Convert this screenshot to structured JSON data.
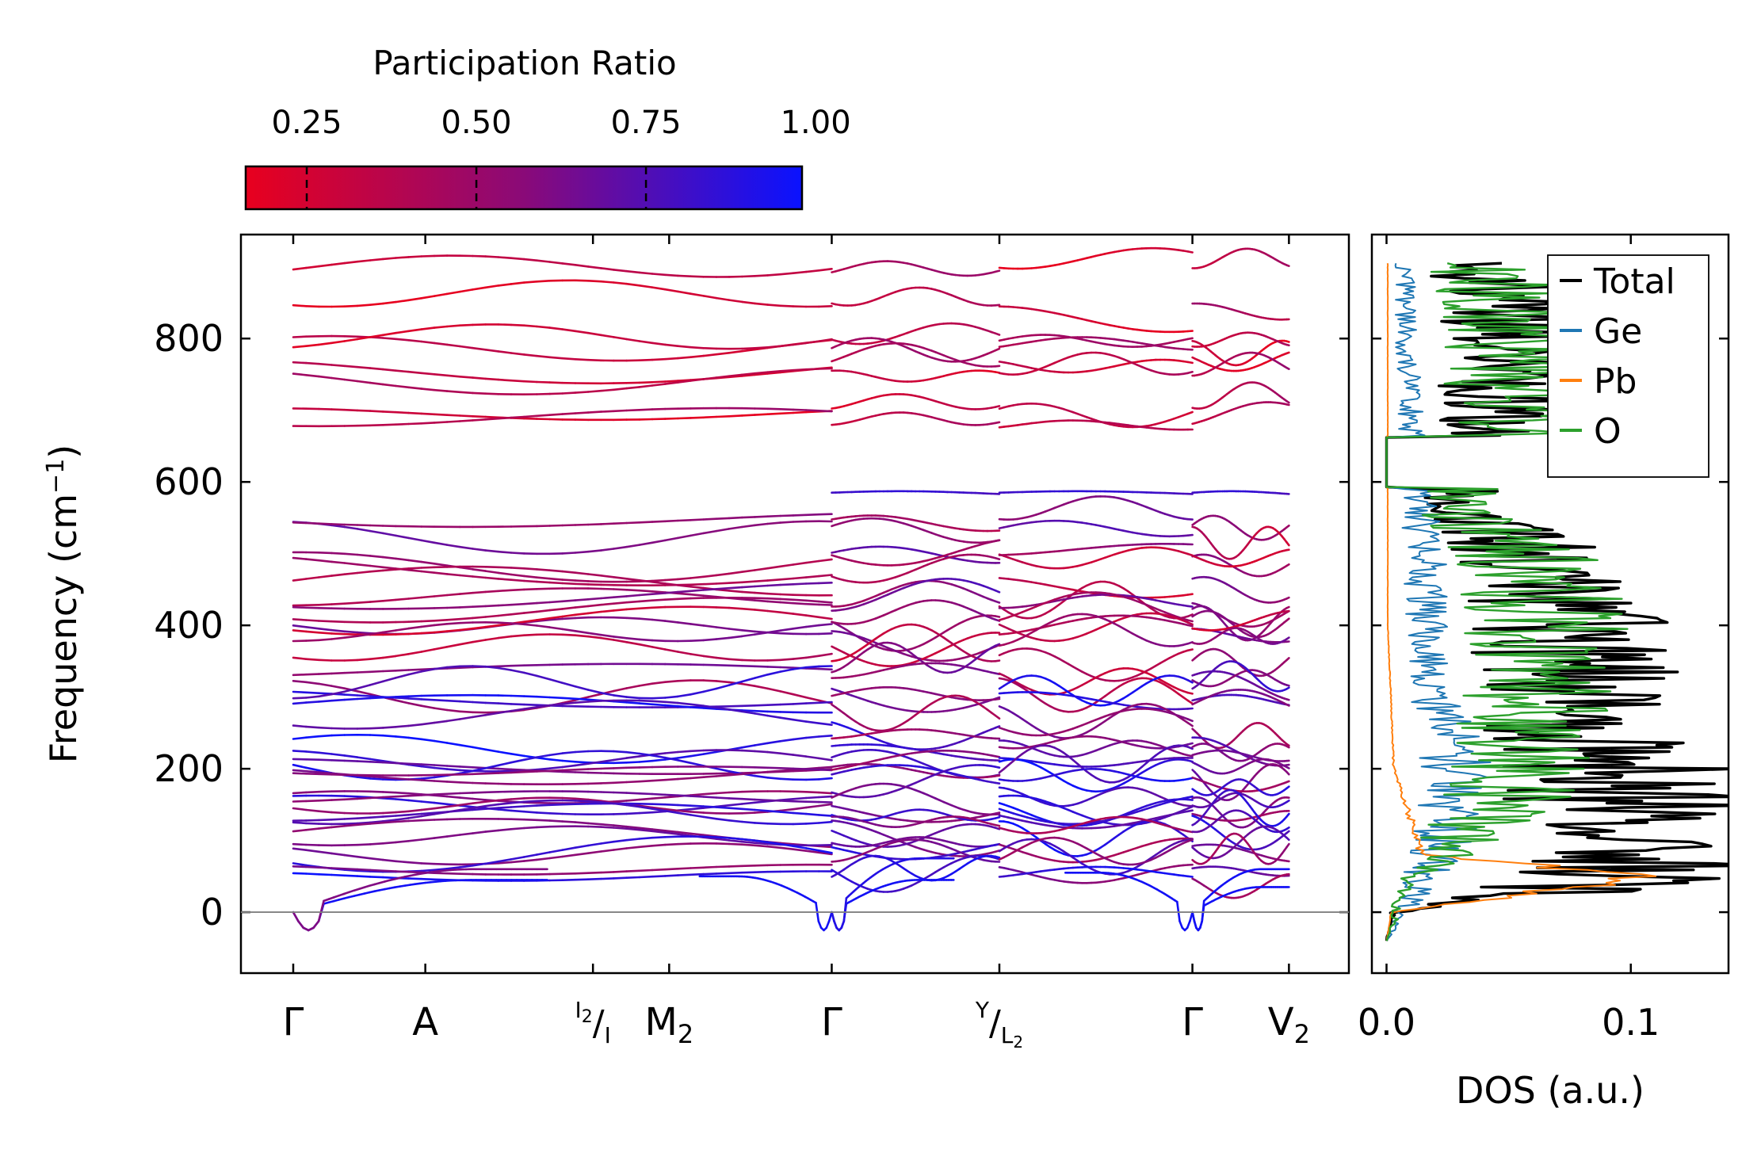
{
  "colors": {
    "low": "#e8001e",
    "mid": "#8a0a78",
    "high": "#0a12ff",
    "axis": "#000000",
    "zero_line": "#808080",
    "dos_total": "#000000",
    "dos_ge": "#1f77b4",
    "dos_pb": "#ff7f0e",
    "dos_o": "#2ca02c"
  },
  "chart_data": [
    {
      "type": "line",
      "name": "phonon-dispersion",
      "ylabel_main": "Frequency (cm",
      "ylabel_sup": "−1",
      "ylabel_end": ")",
      "ylim": [
        -85,
        945
      ],
      "yticks": [
        0,
        200,
        400,
        600,
        800
      ],
      "ytick_labels": [
        "0",
        "200",
        "400",
        "600",
        "800"
      ],
      "kpoints": [
        {
          "pos": 0.0,
          "label": "Γ"
        },
        {
          "pos": 0.13,
          "label": "A"
        },
        {
          "pos": 0.295,
          "label_sup": "I",
          "label_sup_sub": "2",
          "label_sep": "/",
          "label_main": "I"
        },
        {
          "pos": 0.37,
          "label": "M",
          "label_sub": "2"
        },
        {
          "pos": 0.53,
          "label": "Γ"
        },
        {
          "pos": 0.695,
          "label_sup": "Y",
          "label_sep": "/",
          "label_main": "L",
          "label_main_sub": "2"
        },
        {
          "pos": 0.885,
          "label": "Γ"
        },
        {
          "pos": 0.98,
          "label": "V",
          "label_sub": "2"
        }
      ],
      "segments": [
        [
          0.0,
          0.53
        ],
        [
          0.53,
          0.695
        ],
        [
          0.695,
          0.885
        ],
        [
          0.885,
          0.98
        ]
      ],
      "colorbar": {
        "title": "Participation Ratio",
        "range": [
          0.16,
          0.98
        ],
        "ticks": [
          0.25,
          0.5,
          0.75,
          1.0
        ],
        "tick_labels": [
          "0.25",
          "0.50",
          "0.75",
          "1.00"
        ],
        "colormap": [
          "red",
          "purple",
          "blue"
        ]
      },
      "acoustic_dip": {
        "gamma_minimum": -28,
        "value_at_zone_center": 0
      },
      "band_frequency_ranges": {
        "optical_high": [
          670,
          900
        ],
        "optical_mid": [
          330,
          590
        ],
        "low": [
          40,
          320
        ]
      }
    },
    {
      "type": "line",
      "name": "density-of-states",
      "xlabel": "DOS (a.u.)",
      "xlim": [
        -0.006,
        0.14
      ],
      "xticks": [
        0.0,
        0.1
      ],
      "xtick_labels": [
        "0.0",
        "0.1"
      ],
      "ylim": [
        -85,
        945
      ],
      "legend": {
        "placement": "top-right",
        "entries": [
          "Total",
          "Ge",
          "Pb",
          "O"
        ]
      },
      "series": [
        {
          "name": "Total",
          "peaks": [
            [
              -40,
              0.0
            ],
            [
              0,
              0.003
            ],
            [
              45,
              0.135
            ],
            [
              130,
              0.125
            ],
            [
              200,
              0.12
            ],
            [
              240,
              0.1
            ],
            [
              380,
              0.095
            ],
            [
              500,
              0.08
            ],
            [
              560,
              0.035
            ],
            [
              700,
              0.055
            ],
            [
              840,
              0.06
            ],
            [
              900,
              0.05
            ]
          ]
        },
        {
          "name": "Ge",
          "peaks": [
            [
              -40,
              0.0
            ],
            [
              100,
              0.03
            ],
            [
              200,
              0.035
            ],
            [
              350,
              0.02
            ],
            [
              480,
              0.02
            ],
            [
              700,
              0.012
            ],
            [
              800,
              0.01
            ]
          ]
        },
        {
          "name": "Pb",
          "peaks": [
            [
              -40,
              0.0
            ],
            [
              0,
              0.002
            ],
            [
              50,
              0.11
            ],
            [
              80,
              0.015
            ],
            [
              200,
              0.003
            ],
            [
              400,
              0.0005
            ]
          ]
        },
        {
          "name": "O",
          "peaks": [
            [
              -40,
              0.0
            ],
            [
              40,
              0.01
            ],
            [
              150,
              0.06
            ],
            [
              250,
              0.07
            ],
            [
              380,
              0.08
            ],
            [
              500,
              0.075
            ],
            [
              560,
              0.035
            ],
            [
              700,
              0.065
            ],
            [
              850,
              0.065
            ],
            [
              900,
              0.045
            ]
          ]
        }
      ]
    }
  ]
}
